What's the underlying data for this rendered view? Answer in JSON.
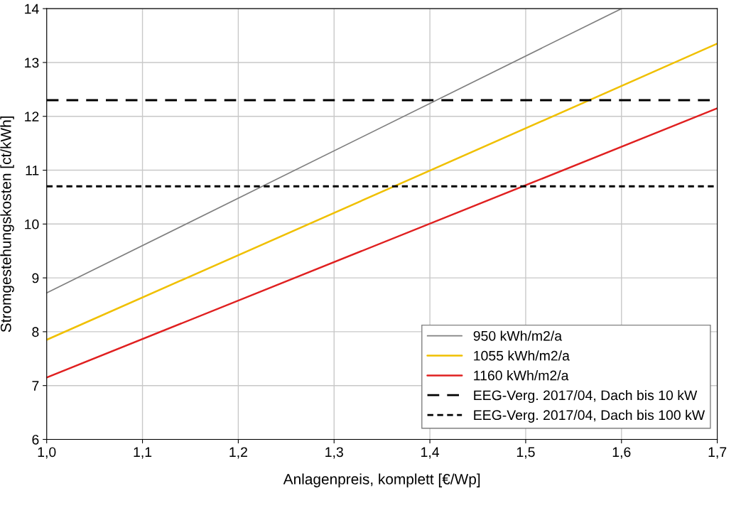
{
  "chart_data": {
    "type": "line",
    "xlabel": "Anlagenpreis, komplett [€/Wp]",
    "ylabel": "Stromgestehungskosten [ct/kWh]",
    "series": [
      {
        "name": "950 kWh/m2/a",
        "color": "#808080",
        "x": [
          1.0,
          1.6
        ],
        "values": [
          8.72,
          14.0
        ]
      },
      {
        "name": "1055 kWh/m2/a",
        "color": "#f0c000",
        "x": [
          1.0,
          1.7
        ],
        "values": [
          7.85,
          13.35
        ]
      },
      {
        "name": "1160 kWh/m2/a",
        "color": "#e02020",
        "x": [
          1.0,
          1.7
        ],
        "values": [
          7.15,
          12.15
        ]
      }
    ],
    "ref_lines": [
      {
        "axis": "y",
        "value": 12.3,
        "label": "EEG-Verg. 2017/04, Dach bis 10 kW",
        "color": "#000000",
        "line_style": "dashed"
      },
      {
        "axis": "y",
        "value": 10.7,
        "label": "EEG-Verg. 2017/04, Dach bis 100 kW",
        "color": "#000000",
        "line_style": "dotted"
      }
    ],
    "xlim": [
      1.0,
      1.7
    ],
    "xticks": [
      {
        "value": 1.0,
        "label": "1,0"
      },
      {
        "value": 1.1,
        "label": "1,1"
      },
      {
        "value": 1.2,
        "label": "1,2"
      },
      {
        "value": 1.3,
        "label": "1,3"
      },
      {
        "value": 1.4,
        "label": "1,4"
      },
      {
        "value": 1.5,
        "label": "1,5"
      },
      {
        "value": 1.6,
        "label": "1,6"
      },
      {
        "value": 1.7,
        "label": "1,7"
      }
    ],
    "ylim": [
      6,
      14
    ],
    "yticks": [
      6,
      7,
      8,
      9,
      10,
      11,
      12,
      13,
      14
    ],
    "grid": true,
    "legend": "bottom right",
    "line_style": "solid"
  }
}
